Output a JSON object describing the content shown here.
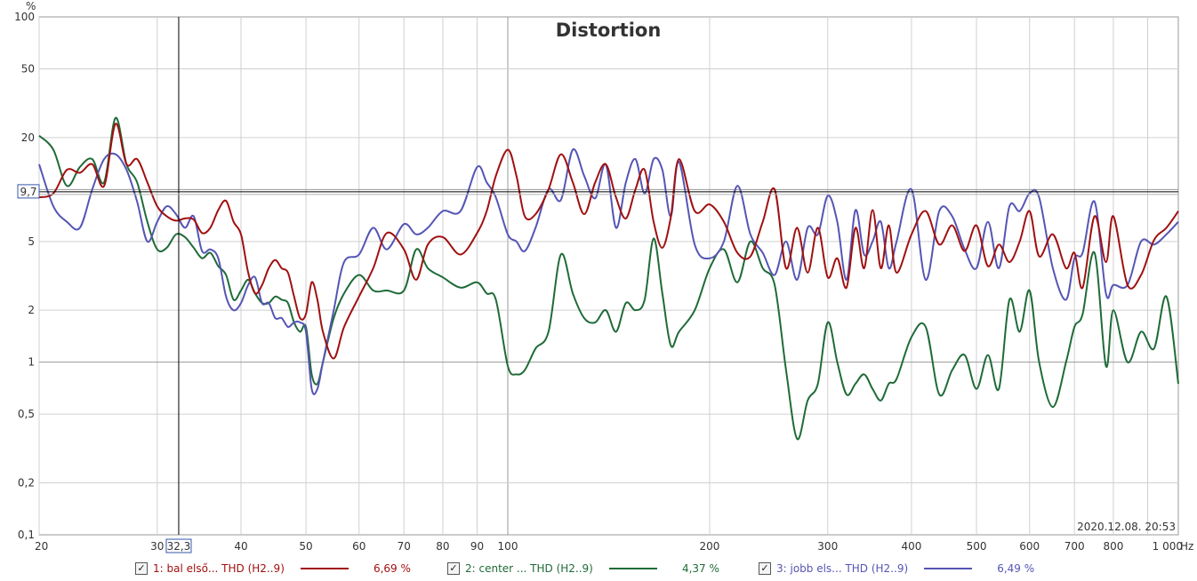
{
  "chart_data": {
    "type": "line",
    "title": "Distortion",
    "y_unit": "%",
    "x_unit": "Hz",
    "xscale": "log",
    "yscale": "log",
    "xlim": [
      20,
      1000
    ],
    "ylim": [
      0.1,
      100
    ],
    "grid": true,
    "x_tick_labels": [
      "20",
      "30",
      "40",
      "50",
      "60",
      "70",
      "80",
      "90",
      "100",
      "200",
      "300",
      "400",
      "500",
      "600",
      "700",
      "800",
      "1 000"
    ],
    "y_tick_labels": [
      "100",
      "50",
      "20",
      "5",
      "2",
      "1",
      "0,5",
      "0,2",
      "0,1"
    ],
    "cursor": {
      "x": 32.3,
      "x_label": "32,3",
      "y": 9.7,
      "y_label": "9,7"
    },
    "timestamp": "2020.12.08. 20:53",
    "series": [
      {
        "name": "1: bal első... THD (H2..9)",
        "color": "#a01010",
        "value_label": "6,69 %",
        "x": [
          20,
          21,
          22,
          23,
          24,
          25,
          26,
          27,
          28,
          29,
          30,
          31,
          32,
          33,
          34,
          35,
          36,
          37,
          38,
          39,
          40,
          41,
          42,
          43,
          44,
          45,
          46,
          47,
          48,
          49,
          50,
          51,
          52,
          53,
          55,
          57,
          60,
          63,
          66,
          70,
          73,
          76,
          80,
          85,
          90,
          93,
          96,
          100,
          103,
          106,
          110,
          115,
          120,
          125,
          130,
          135,
          140,
          145,
          150,
          155,
          160,
          165,
          170,
          175,
          180,
          190,
          200,
          210,
          220,
          230,
          240,
          250,
          260,
          270,
          280,
          290,
          300,
          310,
          320,
          330,
          340,
          350,
          360,
          370,
          380,
          400,
          420,
          440,
          460,
          480,
          500,
          520,
          540,
          560,
          580,
          600,
          620,
          650,
          680,
          700,
          720,
          750,
          780,
          800,
          840,
          880,
          920,
          960,
          1000
        ],
        "y": [
          9,
          9.5,
          13,
          12.5,
          14,
          10.5,
          24,
          14,
          15,
          11,
          8,
          7,
          6.6,
          6.8,
          6.7,
          5.6,
          6,
          7.6,
          8.6,
          6.5,
          5.5,
          3.3,
          2.5,
          2.8,
          3.5,
          3.9,
          3.5,
          3.3,
          2.4,
          1.8,
          1.9,
          2.9,
          2.3,
          1.5,
          1.05,
          1.6,
          2.4,
          3.5,
          5.6,
          4.5,
          3.0,
          4.8,
          5.3,
          4.2,
          5.6,
          7.5,
          12,
          17,
          12,
          7,
          7.2,
          10,
          16,
          11,
          7.2,
          11,
          14,
          9,
          6.8,
          10,
          13,
          6.5,
          4.6,
          6.9,
          15,
          7.5,
          8.2,
          6.5,
          4.3,
          4.1,
          6.5,
          10,
          3.5,
          6,
          3.3,
          6,
          3.1,
          4,
          2.7,
          6,
          3.5,
          7.6,
          3.5,
          6.2,
          3.3,
          5.5,
          7.5,
          4.8,
          6.2,
          4.4,
          6.2,
          3.6,
          4.8,
          3.8,
          5,
          7.5,
          4.1,
          5.5,
          3.5,
          4.3,
          2.7,
          7,
          3.8,
          7.0,
          2.8,
          3.2,
          5.1,
          6.0,
          7.5
        ]
      },
      {
        "name": "2: center ... THD (H2..9)",
        "color": "#1f6b38",
        "value_label": "4,37 %",
        "x": [
          20,
          21,
          22,
          23,
          24,
          25,
          26,
          27,
          28,
          29,
          30,
          31,
          32,
          33,
          34,
          35,
          36,
          37,
          38,
          39,
          40,
          41,
          42,
          43,
          44,
          45,
          46,
          47,
          48,
          49,
          50,
          51,
          52,
          53,
          55,
          57,
          60,
          63,
          66,
          70,
          73,
          76,
          80,
          85,
          90,
          93,
          96,
          100,
          103,
          106,
          110,
          115,
          120,
          125,
          130,
          135,
          140,
          145,
          150,
          155,
          160,
          165,
          170,
          175,
          180,
          190,
          200,
          210,
          220,
          230,
          240,
          250,
          260,
          270,
          280,
          290,
          300,
          310,
          320,
          330,
          340,
          350,
          360,
          370,
          380,
          400,
          420,
          440,
          460,
          480,
          500,
          520,
          540,
          560,
          580,
          600,
          620,
          650,
          680,
          700,
          720,
          750,
          780,
          800,
          840,
          880,
          920,
          960,
          1000
        ],
        "y": [
          20.5,
          17,
          10.5,
          13.5,
          15,
          11,
          26,
          14,
          11,
          6.5,
          4.5,
          4.6,
          5.5,
          5.3,
          4.6,
          4.0,
          4.3,
          3.6,
          3.2,
          2.3,
          2.6,
          3.0,
          2.5,
          2.2,
          2.2,
          2.4,
          2.3,
          2.2,
          1.7,
          1.5,
          1.6,
          0.85,
          0.75,
          1.0,
          1.8,
          2.5,
          3.2,
          2.6,
          2.6,
          2.6,
          4.5,
          3.5,
          3.1,
          2.7,
          2.9,
          2.5,
          2.3,
          0.95,
          0.85,
          0.9,
          1.2,
          1.5,
          4.2,
          2.5,
          1.8,
          1.7,
          2.0,
          1.5,
          2.2,
          2.0,
          2.3,
          5.2,
          2.5,
          1.25,
          1.5,
          2.0,
          3.5,
          4.5,
          2.9,
          5.0,
          3.5,
          2.8,
          0.9,
          0.36,
          0.6,
          0.75,
          1.7,
          1.0,
          0.65,
          0.75,
          0.85,
          0.7,
          0.6,
          0.75,
          0.8,
          1.4,
          1.6,
          0.65,
          0.9,
          1.1,
          0.7,
          1.1,
          0.7,
          2.3,
          1.5,
          2.6,
          1.0,
          0.55,
          1.0,
          1.6,
          1.9,
          4.3,
          0.95,
          2.0,
          1.0,
          1.5,
          1.2,
          2.4,
          0.75
        ]
      },
      {
        "name": "3: jobb els... THD (H2..9)",
        "color": "#5555b5",
        "value_label": "6,49 %",
        "x": [
          20,
          21,
          22,
          23,
          24,
          25,
          26,
          27,
          28,
          29,
          30,
          31,
          32,
          33,
          34,
          35,
          36,
          37,
          38,
          39,
          40,
          41,
          42,
          43,
          44,
          45,
          46,
          47,
          48,
          49,
          50,
          51,
          52,
          53,
          55,
          57,
          60,
          63,
          66,
          70,
          73,
          76,
          80,
          85,
          90,
          93,
          96,
          100,
          103,
          106,
          110,
          115,
          120,
          125,
          130,
          135,
          140,
          145,
          150,
          155,
          160,
          165,
          170,
          175,
          180,
          190,
          200,
          210,
          220,
          230,
          240,
          250,
          260,
          270,
          280,
          290,
          300,
          310,
          320,
          330,
          340,
          350,
          360,
          370,
          380,
          400,
          420,
          440,
          460,
          480,
          500,
          520,
          540,
          560,
          580,
          600,
          620,
          650,
          680,
          700,
          720,
          750,
          780,
          800,
          840,
          880,
          920,
          960,
          1000
        ],
        "y": [
          14,
          8,
          6.5,
          6,
          10,
          15,
          16,
          13,
          8.5,
          5,
          6.5,
          8,
          7.2,
          6.0,
          7.0,
          4.4,
          4.5,
          4.0,
          2.4,
          2.0,
          2.2,
          2.8,
          3.1,
          2.2,
          2.2,
          1.8,
          1.8,
          1.6,
          1.7,
          1.7,
          1.5,
          0.7,
          0.7,
          1.0,
          2.0,
          3.8,
          4.2,
          6.0,
          4.5,
          6.3,
          5.5,
          6.0,
          7.5,
          7.5,
          13.5,
          11,
          9,
          5.5,
          5,
          4.4,
          6,
          10,
          8.7,
          17,
          12,
          8.9,
          14,
          6.0,
          11,
          15,
          9.5,
          15,
          13,
          7.0,
          14.5,
          4.8,
          4.0,
          5.0,
          10.5,
          5.5,
          4.3,
          3.2,
          5.0,
          3.0,
          6.0,
          5.5,
          9.2,
          6.5,
          3.0,
          7.6,
          4.2,
          5.0,
          6.5,
          3.5,
          5.0,
          10,
          3.0,
          7.5,
          7.0,
          4.5,
          3.5,
          6.5,
          3.5,
          8.0,
          7.5,
          9.5,
          9.0,
          3.5,
          2.3,
          4.0,
          4.3,
          8.5,
          2.5,
          2.8,
          2.8,
          5.0,
          4.8,
          5.5,
          6.5
        ]
      }
    ]
  }
}
